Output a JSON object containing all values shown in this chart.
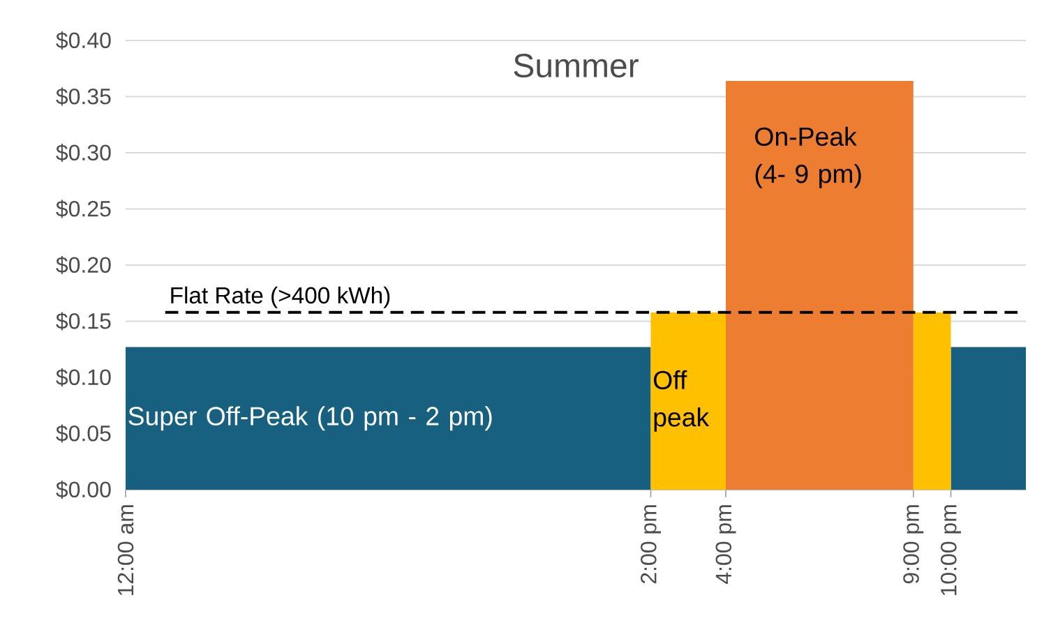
{
  "chart_data": {
    "type": "area",
    "title": "Summer",
    "series": [
      {
        "name": "Super Off-Peak (10 pm - 2 pm)",
        "color": "#17607f",
        "x": [
          0,
          14
        ],
        "values": [
          0.127,
          0.127
        ]
      },
      {
        "color": "#17607f",
        "x": [
          22,
          24
        ],
        "values": [
          0.127,
          0.127
        ]
      },
      {
        "name": "Off peak",
        "color": "#ffc000",
        "x": [
          14,
          16
        ],
        "values": [
          0.158,
          0.158
        ]
      },
      {
        "color": "#ffc000",
        "x": [
          21,
          22
        ],
        "values": [
          0.158,
          0.158
        ]
      },
      {
        "name": "On-Peak (4- 9 pm)",
        "color": "#ed7d31",
        "x": [
          16,
          21
        ],
        "values": [
          0.364,
          0.364
        ]
      }
    ],
    "xlim": [
      0,
      24
    ],
    "xticks": [
      {
        "value": 0,
        "label": "12:00 am"
      },
      {
        "value": 14,
        "label": "2:00 pm"
      },
      {
        "value": 16,
        "label": "4:00 pm"
      },
      {
        "value": 21,
        "label": "9:00 pm"
      },
      {
        "value": 22,
        "label": "10:00 pm"
      }
    ],
    "ylim": [
      0,
      0.4
    ],
    "yticks": [
      {
        "value": 0,
        "label": "$0.00"
      },
      {
        "value": 0.05,
        "label": "$0.05"
      },
      {
        "value": 0.1,
        "label": "$0.10"
      },
      {
        "value": 0.15,
        "label": "$0.15"
      },
      {
        "value": 0.2,
        "label": "$0.20"
      },
      {
        "value": 0.25,
        "label": "$0.25"
      },
      {
        "value": 0.3,
        "label": "$0.30"
      },
      {
        "value": 0.35,
        "label": "$0.35"
      },
      {
        "value": 0.4,
        "label": "$0.40"
      }
    ],
    "ref_lines": [
      {
        "axis": "y",
        "value": 0.158,
        "label": "Flat Rate (>400 kWh)",
        "color": "#000000",
        "line_style": "dashed"
      }
    ],
    "grid": "y"
  }
}
